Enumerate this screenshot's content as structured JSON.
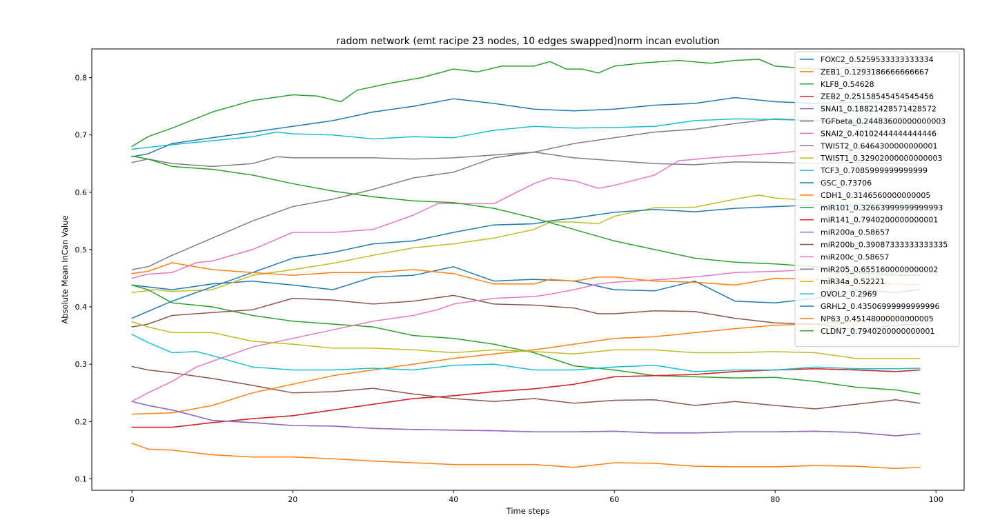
{
  "chart_data": {
    "type": "line",
    "title": "radom network (emt racipe 23 nodes, 10 edges swapped)norm incan evolution",
    "xlabel": "Time steps",
    "ylabel": "Absolute Mean InCan Value",
    "xlim": [
      -5,
      103.5
    ],
    "ylim": [
      0.08,
      0.85
    ],
    "xticks": [
      0,
      20,
      40,
      60,
      80,
      100
    ],
    "yticks": [
      0.1,
      0.2,
      0.3,
      0.4,
      0.5,
      0.6,
      0.7,
      0.8
    ],
    "grid": false,
    "legend_position": "upper right",
    "series": [
      {
        "name": "FOXC2_0.5259533333333334",
        "color": "#1f77b4",
        "x": [
          0,
          5,
          10,
          15,
          20,
          25,
          30,
          35,
          40,
          45,
          50,
          55,
          60,
          65,
          70,
          75,
          80,
          85,
          90,
          95,
          98
        ],
        "y": [
          0.438,
          0.43,
          0.44,
          0.445,
          0.438,
          0.43,
          0.452,
          0.455,
          0.47,
          0.445,
          0.448,
          0.445,
          0.43,
          0.428,
          0.445,
          0.41,
          0.407,
          0.415,
          0.43,
          0.425,
          0.43
        ]
      },
      {
        "name": "ZEB1_0.1293186666666667",
        "color": "#ff7f0e",
        "x": [
          0,
          2,
          5,
          10,
          15,
          20,
          25,
          30,
          35,
          40,
          45,
          50,
          55,
          60,
          65,
          70,
          75,
          80,
          85,
          90,
          95,
          98
        ],
        "y": [
          0.162,
          0.152,
          0.15,
          0.142,
          0.138,
          0.138,
          0.135,
          0.131,
          0.128,
          0.125,
          0.125,
          0.125,
          0.12,
          0.128,
          0.127,
          0.122,
          0.121,
          0.121,
          0.123,
          0.122,
          0.118,
          0.12
        ]
      },
      {
        "name": "KLF8_0.54628",
        "color": "#2ca02c",
        "x": [
          0,
          2,
          5,
          10,
          15,
          20,
          23,
          26,
          28,
          32,
          36,
          40,
          43,
          46,
          50,
          52,
          54,
          56,
          58,
          60,
          64,
          68,
          72,
          75,
          78,
          80,
          85,
          90,
          95,
          98
        ],
        "y": [
          0.68,
          0.697,
          0.712,
          0.74,
          0.76,
          0.77,
          0.768,
          0.758,
          0.778,
          0.79,
          0.8,
          0.815,
          0.81,
          0.82,
          0.82,
          0.828,
          0.815,
          0.815,
          0.808,
          0.82,
          0.826,
          0.83,
          0.825,
          0.83,
          0.832,
          0.82,
          0.815,
          0.818,
          0.812,
          0.812
        ]
      },
      {
        "name": "ZEB2_0.25158545454545456",
        "color": "#d62728",
        "x": [
          0,
          5,
          10,
          15,
          20,
          25,
          30,
          35,
          40,
          45,
          50,
          55,
          60,
          65,
          70,
          75,
          80,
          85,
          90,
          95,
          98
        ],
        "y": [
          0.19,
          0.19,
          0.198,
          0.205,
          0.21,
          0.22,
          0.23,
          0.24,
          0.245,
          0.252,
          0.257,
          0.265,
          0.278,
          0.28,
          0.282,
          0.287,
          0.29,
          0.292,
          0.29,
          0.287,
          0.29
        ]
      },
      {
        "name": "SNAI1_0.18821428571428572",
        "color": "#9467bd",
        "x": [
          0,
          2,
          5,
          10,
          15,
          20,
          25,
          30,
          35,
          40,
          45,
          50,
          55,
          60,
          65,
          70,
          75,
          80,
          85,
          90,
          95,
          98
        ],
        "y": [
          0.235,
          0.228,
          0.22,
          0.202,
          0.198,
          0.193,
          0.192,
          0.188,
          0.186,
          0.185,
          0.184,
          0.182,
          0.182,
          0.183,
          0.18,
          0.18,
          0.182,
          0.182,
          0.183,
          0.181,
          0.175,
          0.179
        ]
      },
      {
        "name": "TGFbeta_0.24483600000000003",
        "color": "#8c564b",
        "x": [
          0,
          2,
          5,
          10,
          15,
          20,
          25,
          30,
          35,
          40,
          45,
          50,
          55,
          60,
          65,
          70,
          75,
          80,
          85,
          90,
          95,
          98
        ],
        "y": [
          0.296,
          0.29,
          0.285,
          0.275,
          0.263,
          0.25,
          0.252,
          0.258,
          0.248,
          0.24,
          0.235,
          0.24,
          0.232,
          0.237,
          0.238,
          0.228,
          0.235,
          0.228,
          0.222,
          0.23,
          0.238,
          0.232
        ]
      },
      {
        "name": "SNAI2_0.40102444444444446",
        "color": "#e377c2",
        "x": [
          0,
          2,
          5,
          8,
          10,
          15,
          20,
          25,
          30,
          35,
          38,
          40,
          45,
          50,
          52,
          55,
          58,
          60,
          65,
          68,
          72,
          75,
          80,
          85,
          90,
          95,
          98
        ],
        "y": [
          0.45,
          0.457,
          0.46,
          0.477,
          0.48,
          0.5,
          0.53,
          0.53,
          0.535,
          0.56,
          0.58,
          0.58,
          0.58,
          0.615,
          0.625,
          0.62,
          0.607,
          0.612,
          0.63,
          0.655,
          0.66,
          0.663,
          0.668,
          0.675,
          0.67,
          0.665,
          0.667
        ]
      },
      {
        "name": "TWIST2_0.6464300000000001",
        "color": "#7f7f7f",
        "x": [
          0,
          2,
          5,
          10,
          15,
          20,
          25,
          30,
          35,
          40,
          45,
          50,
          55,
          60,
          65,
          70,
          75,
          80,
          85,
          90,
          95,
          98
        ],
        "y": [
          0.465,
          0.47,
          0.49,
          0.52,
          0.55,
          0.575,
          0.588,
          0.605,
          0.625,
          0.635,
          0.66,
          0.67,
          0.685,
          0.695,
          0.705,
          0.71,
          0.72,
          0.728,
          0.725,
          0.72,
          0.722,
          0.72
        ]
      },
      {
        "name": "TWIST1_0.32902000000000003",
        "color": "#bcbd22",
        "x": [
          0,
          3,
          5,
          10,
          15,
          20,
          25,
          30,
          35,
          40,
          45,
          50,
          52,
          55,
          58,
          60,
          65,
          70,
          75,
          78,
          80,
          85,
          90,
          95,
          98
        ],
        "y": [
          0.425,
          0.43,
          0.427,
          0.43,
          0.455,
          0.465,
          0.476,
          0.49,
          0.503,
          0.51,
          0.52,
          0.535,
          0.548,
          0.548,
          0.545,
          0.558,
          0.573,
          0.574,
          0.588,
          0.595,
          0.59,
          0.585,
          0.58,
          0.582,
          0.58
        ]
      },
      {
        "name": "TCF3_0.7085999999999999",
        "color": "#17becf",
        "x": [
          0,
          5,
          10,
          15,
          18,
          20,
          25,
          30,
          35,
          40,
          45,
          50,
          55,
          60,
          65,
          70,
          75,
          80,
          85,
          90,
          95,
          98
        ],
        "y": [
          0.675,
          0.683,
          0.69,
          0.697,
          0.705,
          0.702,
          0.7,
          0.693,
          0.697,
          0.695,
          0.708,
          0.715,
          0.712,
          0.713,
          0.715,
          0.725,
          0.728,
          0.727,
          0.725,
          0.722,
          0.72,
          0.72
        ]
      },
      {
        "name": "GSC_0.73706",
        "color": "#1f77b4",
        "x": [
          0,
          2,
          5,
          10,
          15,
          20,
          25,
          30,
          35,
          40,
          45,
          50,
          55,
          60,
          65,
          70,
          75,
          80,
          85,
          90,
          95,
          98
        ],
        "y": [
          0.662,
          0.667,
          0.685,
          0.695,
          0.705,
          0.715,
          0.725,
          0.74,
          0.75,
          0.763,
          0.755,
          0.745,
          0.742,
          0.745,
          0.752,
          0.755,
          0.765,
          0.758,
          0.755,
          0.757,
          0.756,
          0.755
        ]
      },
      {
        "name": "CDH1_0.3146560000000005",
        "color": "#ff7f0e",
        "x": [
          0,
          5,
          10,
          15,
          20,
          25,
          30,
          35,
          40,
          45,
          50,
          55,
          60,
          65,
          70,
          75,
          80,
          85,
          90,
          95,
          98
        ],
        "y": [
          0.213,
          0.215,
          0.228,
          0.25,
          0.265,
          0.28,
          0.29,
          0.3,
          0.31,
          0.318,
          0.325,
          0.335,
          0.345,
          0.348,
          0.355,
          0.362,
          0.368,
          0.37,
          0.375,
          0.38,
          0.383
        ]
      },
      {
        "name": "miR101_0.32663999999999993",
        "color": "#2ca02c",
        "x": [
          0,
          2,
          5,
          10,
          15,
          20,
          25,
          30,
          35,
          40,
          45,
          50,
          55,
          60,
          65,
          70,
          75,
          80,
          85,
          90,
          95,
          98
        ],
        "y": [
          0.438,
          0.43,
          0.407,
          0.4,
          0.385,
          0.375,
          0.37,
          0.365,
          0.35,
          0.345,
          0.335,
          0.32,
          0.297,
          0.29,
          0.28,
          0.278,
          0.276,
          0.277,
          0.27,
          0.26,
          0.255,
          0.248
        ]
      },
      {
        "name": "miR141_0.7940200000000001",
        "color": "#d62728",
        "x": [
          0,
          5,
          10,
          15,
          20,
          25,
          30,
          35,
          40,
          45,
          50,
          55,
          60,
          65,
          70,
          75,
          80,
          85,
          90,
          95,
          98
        ],
        "y": [
          0.19,
          0.19,
          0.198,
          0.205,
          0.21,
          0.22,
          0.23,
          0.24,
          0.245,
          0.252,
          0.257,
          0.265,
          0.278,
          0.28,
          0.282,
          0.287,
          0.29,
          0.292,
          0.29,
          0.287,
          0.29
        ]
      },
      {
        "name": "miR200a_0.58657",
        "color": "#9467bd",
        "x": [
          0,
          2,
          5,
          10,
          15,
          20,
          25,
          30,
          35,
          40,
          45,
          50,
          55,
          60,
          65,
          70,
          75,
          80,
          85,
          90,
          95,
          98
        ],
        "y": [
          0.235,
          0.228,
          0.22,
          0.202,
          0.198,
          0.193,
          0.192,
          0.188,
          0.186,
          0.185,
          0.184,
          0.182,
          0.182,
          0.183,
          0.18,
          0.18,
          0.182,
          0.182,
          0.183,
          0.181,
          0.175,
          0.179
        ]
      },
      {
        "name": "miR200b_0.39087333333333335",
        "color": "#8c564b",
        "x": [
          0,
          2,
          5,
          10,
          15,
          20,
          25,
          30,
          35,
          40,
          45,
          50,
          55,
          58,
          60,
          65,
          70,
          75,
          80,
          85,
          90,
          95,
          98
        ],
        "y": [
          0.365,
          0.37,
          0.385,
          0.39,
          0.395,
          0.415,
          0.412,
          0.405,
          0.41,
          0.42,
          0.405,
          0.403,
          0.398,
          0.388,
          0.388,
          0.393,
          0.392,
          0.38,
          0.372,
          0.37,
          0.36,
          0.368,
          0.37
        ]
      },
      {
        "name": "miR200c_0.58657",
        "color": "#e377c2",
        "x": [
          0,
          2,
          5,
          8,
          10,
          15,
          20,
          25,
          30,
          35,
          38,
          40,
          45,
          50,
          52,
          55,
          58,
          60,
          65,
          68,
          72,
          75,
          80,
          85,
          90,
          95,
          98
        ],
        "y": [
          0.235,
          0.25,
          0.27,
          0.295,
          0.305,
          0.33,
          0.345,
          0.36,
          0.375,
          0.385,
          0.395,
          0.405,
          0.415,
          0.418,
          0.422,
          0.43,
          0.44,
          0.443,
          0.447,
          0.45,
          0.455,
          0.46,
          0.462,
          0.465,
          0.47,
          0.468,
          0.467
        ]
      },
      {
        "name": "miR205_0.6551600000000002",
        "color": "#7f7f7f",
        "x": [
          0,
          2,
          5,
          10,
          15,
          18,
          20,
          25,
          30,
          35,
          40,
          45,
          50,
          55,
          60,
          65,
          70,
          75,
          80,
          85,
          90,
          95,
          98
        ],
        "y": [
          0.652,
          0.658,
          0.65,
          0.645,
          0.65,
          0.662,
          0.66,
          0.66,
          0.66,
          0.658,
          0.66,
          0.665,
          0.67,
          0.66,
          0.655,
          0.65,
          0.648,
          0.653,
          0.652,
          0.65,
          0.652,
          0.65,
          0.648
        ]
      },
      {
        "name": "miR34a_0.52221",
        "color": "#bcbd22",
        "x": [
          0,
          2,
          5,
          10,
          15,
          20,
          25,
          30,
          35,
          40,
          45,
          50,
          55,
          60,
          65,
          70,
          75,
          80,
          85,
          90,
          95,
          98
        ],
        "y": [
          0.374,
          0.365,
          0.355,
          0.355,
          0.34,
          0.335,
          0.328,
          0.328,
          0.325,
          0.32,
          0.325,
          0.322,
          0.318,
          0.325,
          0.325,
          0.32,
          0.32,
          0.322,
          0.32,
          0.31,
          0.31,
          0.31
        ]
      },
      {
        "name": "OVOL2_0.2969",
        "color": "#17becf",
        "x": [
          0,
          2,
          5,
          8,
          10,
          15,
          20,
          25,
          30,
          35,
          40,
          45,
          50,
          55,
          60,
          65,
          70,
          75,
          80,
          85,
          90,
          95,
          98
        ],
        "y": [
          0.352,
          0.338,
          0.32,
          0.322,
          0.315,
          0.295,
          0.29,
          0.29,
          0.293,
          0.29,
          0.298,
          0.3,
          0.29,
          0.29,
          0.295,
          0.298,
          0.287,
          0.29,
          0.29,
          0.295,
          0.292,
          0.292,
          0.293
        ]
      },
      {
        "name": "GRHL2_0.43506999999999996",
        "color": "#1f77b4",
        "x": [
          0,
          5,
          10,
          15,
          20,
          25,
          30,
          35,
          40,
          45,
          50,
          52,
          55,
          60,
          65,
          70,
          75,
          80,
          85,
          90,
          95,
          98
        ],
        "y": [
          0.38,
          0.41,
          0.435,
          0.46,
          0.485,
          0.495,
          0.51,
          0.515,
          0.53,
          0.543,
          0.545,
          0.55,
          0.555,
          0.565,
          0.57,
          0.566,
          0.572,
          0.575,
          0.578,
          0.578,
          0.578,
          0.578
        ]
      },
      {
        "name": "NP63_0.45148000000000005",
        "color": "#ff7f0e",
        "x": [
          0,
          2,
          5,
          10,
          15,
          20,
          25,
          30,
          35,
          40,
          45,
          50,
          52,
          55,
          58,
          60,
          65,
          70,
          75,
          80,
          85,
          90,
          95,
          98
        ],
        "y": [
          0.458,
          0.462,
          0.477,
          0.465,
          0.46,
          0.455,
          0.46,
          0.46,
          0.465,
          0.458,
          0.44,
          0.44,
          0.448,
          0.445,
          0.452,
          0.452,
          0.445,
          0.443,
          0.438,
          0.45,
          0.448,
          0.44,
          0.44,
          0.438
        ]
      },
      {
        "name": "CLDN7_0.7940200000000001",
        "color": "#2ca02c",
        "x": [
          0,
          2,
          5,
          10,
          15,
          20,
          25,
          30,
          35,
          40,
          45,
          50,
          55,
          60,
          65,
          70,
          75,
          80,
          85,
          90,
          95,
          98
        ],
        "y": [
          0.663,
          0.658,
          0.645,
          0.64,
          0.63,
          0.615,
          0.602,
          0.592,
          0.585,
          0.582,
          0.572,
          0.555,
          0.535,
          0.515,
          0.5,
          0.485,
          0.478,
          0.475,
          0.47,
          0.46,
          0.455,
          0.455
        ]
      }
    ]
  }
}
